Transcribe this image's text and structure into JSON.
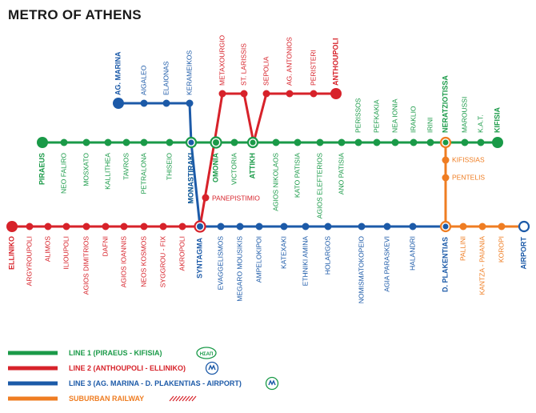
{
  "title": "METRO OF ATHENS",
  "colors": {
    "line1": "#1a9a48",
    "line2": "#d7222a",
    "line3": "#1c5aa8",
    "suburban": "#ef7d22"
  },
  "line1": {
    "name": "LINE 1 (PIRAEUS - KIFISIA)",
    "stations": [
      "PIRAEUS",
      "NEO FALIRO",
      "MOSXATO",
      "KALLITHEA",
      "TAVROS",
      "PETRALONA",
      "THISEIO",
      "MONASTIRAKI",
      "OMONIA",
      "VICTORIA",
      "ATTIKH",
      "AGIOS NIKOLAOS",
      "KATO PATISIA",
      "AGIOS ELEFTERIOS",
      "ANO PATISIA",
      "PERISSOS",
      "PEFKAKIA",
      "NEA IONIA",
      "IRAKLIO",
      "IRINI",
      "NERATZIOTISSA",
      "MAROUSSI",
      "K.A.T.",
      "KIFISIA"
    ]
  },
  "line2": {
    "name": "LINE 2 (ANTHOUPOLI - ELLINIKO)",
    "stations": [
      "ELLINIKO",
      "ARGYROUPOLI",
      "ALIMOS",
      "ILIOUPOLI",
      "AGIOS DIMITRIOS",
      "DAFNI",
      "AGIOS IOANNIS",
      "NEOS KOSMOS",
      "SYGGROU - FIX",
      "AKROPOLI",
      "SYNTAGMA",
      "PANEPISTIMIO",
      "OMONIA",
      "METAXOURGIO",
      "ST. LARISSIS",
      "ATTIKH",
      "SEPOLIA",
      "AG. ANTONIOS",
      "PERISTERI",
      "ANTHOUPOLI"
    ]
  },
  "line3": {
    "name": "LINE 3 (AG. MARINA - D. PLAKENTIAS - AIRPORT)",
    "stations": [
      "AG. MARINA",
      "AIGALEO",
      "ELAIONAS",
      "KERAMEIKOS",
      "MONASTIRAKI",
      "SYNTAGMA",
      "EVAGGELISMOS",
      "MEGARO MOUSIKIS",
      "AMPELOKIPOI",
      "KATEXAKI",
      "ETHNIKI AMINA",
      "HOLARGOS",
      "NOMISMATOKOPEIO",
      "AGIA PARASKEVI",
      "HALANDRI",
      "D. PLAKENTIAS",
      "AIRPORT"
    ]
  },
  "suburban": {
    "name": "SUBURBAN RAILWAY",
    "stations": [
      "NERATZIOTISSA",
      "KIFISSIAS",
      "PENTELIS",
      "D. PLAKENTIAS",
      "PALLINI",
      "KANTZA - PAIANIA",
      "KOROPI",
      "AIRPORT"
    ]
  },
  "logos": {
    "line1": "ΗΣΑΠ"
  }
}
